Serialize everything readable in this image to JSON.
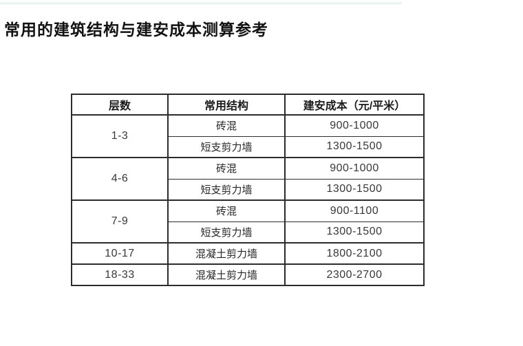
{
  "page": {
    "title": "常用的建筑结构与建安成本测算参考"
  },
  "colors": {
    "background": "#ffffff",
    "title_text": "#121212",
    "table_border": "#2b2b2b",
    "cell_text": "#262626",
    "top_rule": "#f4f9f9"
  },
  "table": {
    "headers": [
      "层数",
      "常用结构",
      "建安成本（元/平米）"
    ],
    "groups": [
      {
        "floors": "1-3",
        "rows": [
          {
            "structure": "砖混",
            "cost": "900-1000"
          },
          {
            "structure": "短支剪力墙",
            "cost": "1300-1500"
          }
        ]
      },
      {
        "floors": "4-6",
        "rows": [
          {
            "structure": "砖混",
            "cost": "900-1000"
          },
          {
            "structure": "短支剪力墙",
            "cost": "1300-1500"
          }
        ]
      },
      {
        "floors": "7-9",
        "rows": [
          {
            "structure": "砖混",
            "cost": "900-1100"
          },
          {
            "structure": "短支剪力墙",
            "cost": "1300-1500"
          }
        ]
      },
      {
        "floors": "10-17",
        "rows": [
          {
            "structure": "混凝土剪力墙",
            "cost": "1800-2100"
          }
        ]
      },
      {
        "floors": "18-33",
        "rows": [
          {
            "structure": "混凝土剪力墙",
            "cost": "2300-2700"
          }
        ]
      }
    ]
  }
}
